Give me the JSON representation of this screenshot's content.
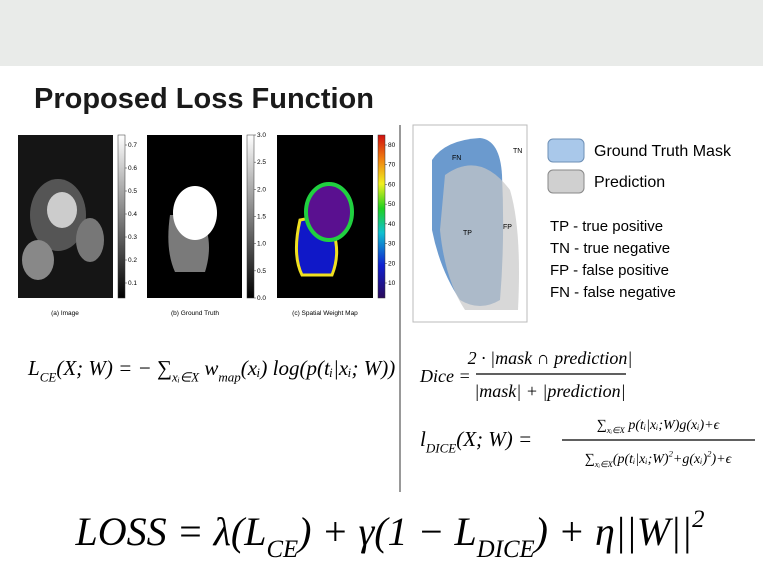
{
  "title": "Proposed Loss Function",
  "figures": [
    {
      "caption": "(a) Image",
      "colorbar": [
        "0.7",
        "0.6",
        "0.5",
        "0.4",
        "0.3",
        "0.2",
        "0.1"
      ]
    },
    {
      "caption": "(b) Ground Truth",
      "colorbar": [
        "3.0",
        "2.5",
        "2.0",
        "1.5",
        "1.0",
        "0.5",
        "0.0"
      ]
    },
    {
      "caption": "(c) Spatial Weight Map",
      "colorbar": [
        "80",
        "70",
        "60",
        "50",
        "40",
        "30",
        "20",
        "10"
      ]
    }
  ],
  "diagram": {
    "regions": [
      "FN",
      "TN",
      "TP",
      "FP"
    ],
    "legend": [
      "Ground Truth Mask",
      "Prediction"
    ],
    "definitions": [
      "TP - true positive",
      "TN - true negative",
      "FP - false positive",
      "FN - false negative"
    ]
  },
  "formulas": {
    "ce": [
      {
        "t": "L"
      },
      {
        "t": "CE",
        "sub": true
      },
      {
        "t": "(X; W) = − ∑"
      },
      {
        "t": "xᵢ∈X",
        "sub": true
      },
      {
        "t": " w"
      },
      {
        "t": "map",
        "sub": true
      },
      {
        "t": "(xᵢ) log(p(tᵢ|xᵢ; W))"
      }
    ],
    "dice_lhs": [
      {
        "t": "Dice ="
      }
    ],
    "dice_num": [
      {
        "t": "2 · |mask ∩ prediction|"
      }
    ],
    "dice_den": [
      {
        "t": "|mask| + |prediction|"
      }
    ],
    "ldice_lhs": [
      {
        "t": "l"
      },
      {
        "t": "DICE",
        "sub": true
      },
      {
        "t": "(X; W) ="
      }
    ],
    "ldice_num": [
      {
        "t": "∑"
      },
      {
        "t": "xᵢ∈X",
        "sub": true
      },
      {
        "t": " p(tᵢ|xᵢ;W)g(xᵢ)+ϵ"
      }
    ],
    "ldice_den": [
      {
        "t": "∑"
      },
      {
        "t": "xᵢ∈X",
        "sub": true
      },
      {
        "t": "(p(tᵢ|xᵢ;W)"
      },
      {
        "t": "2",
        "sup": true
      },
      {
        "t": "+g(xᵢ)"
      },
      {
        "t": "2",
        "sup": true
      },
      {
        "t": ")+ϵ"
      }
    ],
    "loss": [
      {
        "t": "LOSS = λ(L"
      },
      {
        "t": "CE",
        "sub": true
      },
      {
        "t": ") + γ(1 − L"
      },
      {
        "t": "DICE",
        "sub": true
      },
      {
        "t": ") + η||W||"
      },
      {
        "t": "2",
        "sup": true
      }
    ]
  }
}
